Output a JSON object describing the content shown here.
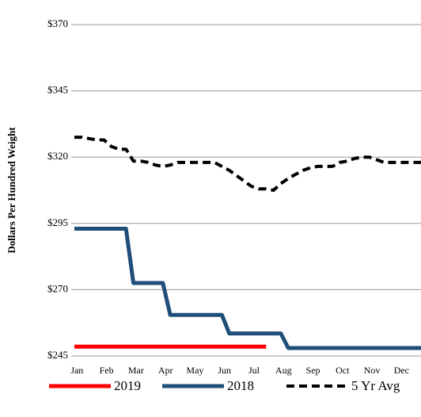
{
  "chart_data": {
    "type": "line",
    "y_label": "Dollars Per Hundred Weight",
    "categories": [
      null,
      "Jan",
      null,
      null,
      null,
      "Feb",
      null,
      null,
      null,
      "Mar",
      null,
      null,
      null,
      "Apr",
      null,
      null,
      null,
      "May",
      null,
      null,
      null,
      "Jun",
      null,
      null,
      null,
      "Jul",
      null,
      null,
      null,
      "Aug",
      null,
      null,
      null,
      "Sep",
      null,
      null,
      null,
      "Oct",
      null,
      null,
      null,
      "Nov",
      null,
      null,
      null,
      "Dec",
      null,
      null
    ],
    "series": [
      {
        "name": "2019",
        "color": "#ff0000",
        "dash": false,
        "values": [
          248.5,
          248.5,
          248.5,
          248.5,
          248.5,
          248.5,
          248.5,
          248.5,
          248.5,
          248.5,
          248.5,
          248.5,
          248.5,
          248.5,
          248.5,
          248.5,
          248.5,
          248.5,
          248.5,
          248.5,
          248.5,
          248.5,
          248.5,
          248.5,
          248.5,
          248.5,
          248.5,
          null,
          null,
          null,
          null,
          null,
          null,
          null,
          null,
          null,
          null,
          null,
          null,
          null,
          null,
          null,
          null,
          null,
          null,
          null,
          null,
          null
        ]
      },
      {
        "name": "2018",
        "color": "#1f4e79",
        "dash": false,
        "values": [
          293,
          293,
          293,
          293,
          293,
          293,
          293,
          293,
          272.5,
          272.5,
          272.5,
          272.5,
          272.5,
          260.5,
          260.5,
          260.5,
          260.5,
          260.5,
          260.5,
          260.5,
          260.5,
          253.5,
          253.5,
          253.5,
          253.5,
          253.5,
          253.5,
          253.5,
          253.5,
          248,
          248,
          248,
          248,
          248,
          248,
          248,
          248,
          248,
          248,
          248,
          248,
          248,
          248,
          248,
          248,
          248,
          248,
          248
        ]
      },
      {
        "name": "5 Yr Avg",
        "color": "#000000",
        "dash": true,
        "values": [
          327.5,
          327.5,
          327,
          326.5,
          326.5,
          324,
          323,
          323,
          318.5,
          318.5,
          318,
          317,
          316.5,
          317,
          318,
          318,
          318,
          318,
          318,
          318,
          316.5,
          315,
          313,
          311,
          309,
          308,
          308,
          307.5,
          310,
          312,
          313.5,
          315,
          316,
          316.5,
          316.5,
          316.5,
          318,
          318.5,
          319.5,
          320,
          320,
          319,
          318,
          318,
          318,
          318,
          318,
          318
        ]
      }
    ],
    "ylim": [
      245,
      370
    ],
    "yticks": [
      {
        "value": 245,
        "label": "$245"
      },
      {
        "value": 270,
        "label": "$270"
      },
      {
        "value": 295,
        "label": "$295"
      },
      {
        "value": 320,
        "label": "$320"
      },
      {
        "value": 345,
        "label": "$345"
      },
      {
        "value": 370,
        "label": "$370"
      }
    ],
    "grid": true,
    "legend": "bottom"
  }
}
